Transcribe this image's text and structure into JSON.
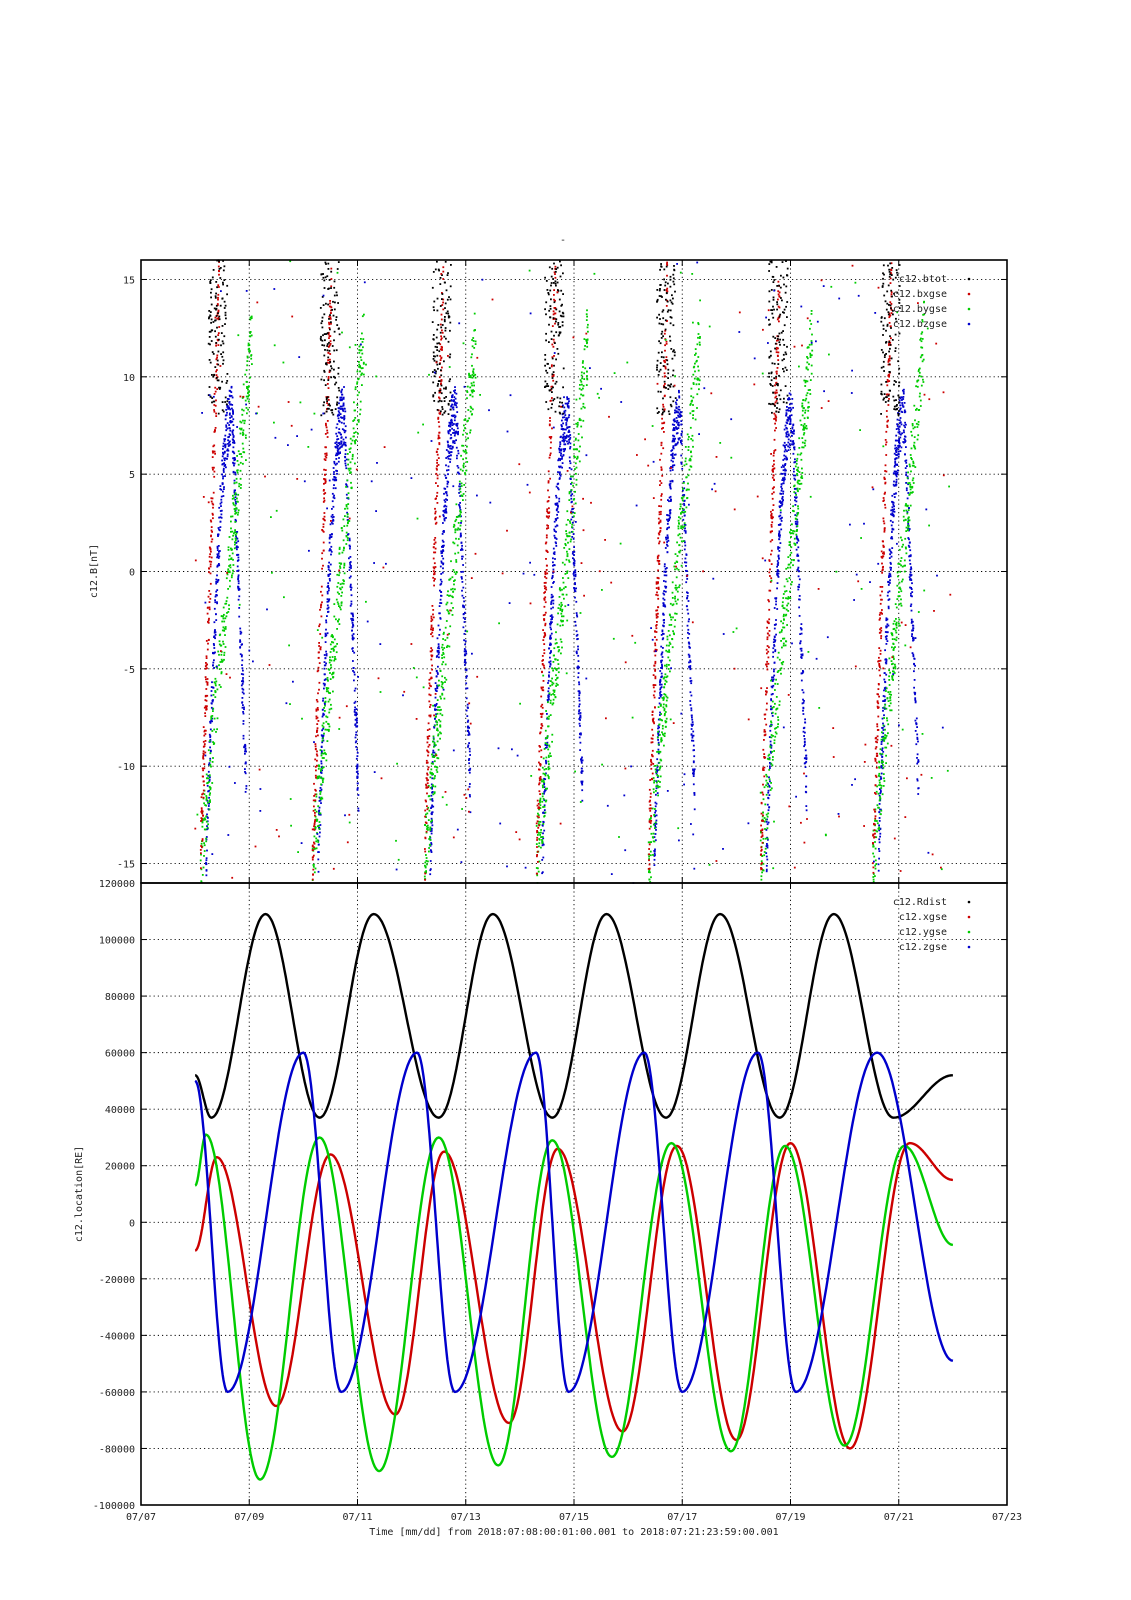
{
  "figure": {
    "title": "-",
    "x_label": "Time [mm/dd]  from 2018:07:08:00:01:00.001  to  2018:07:21:23:59:00.001"
  },
  "chart_data": [
    {
      "type": "scatter",
      "ylabel": "c12.B[nT]",
      "ylim": [
        -16,
        16
      ],
      "yticks": [
        -15,
        -10,
        -5,
        0,
        5,
        10,
        15
      ],
      "xlim": [
        "07/07",
        "07/23"
      ],
      "xticks": [
        "07/07",
        "07/09",
        "07/11",
        "07/13",
        "07/15",
        "07/17",
        "07/19",
        "07/21",
        "07/23"
      ],
      "grid": true,
      "legend_position": "top-right",
      "series": [
        {
          "name": "c12.btot",
          "color": "#000000"
        },
        {
          "name": "c12.bxgse",
          "color": "#cc0000"
        },
        {
          "name": "c12.bygse",
          "color": "#00cc00"
        },
        {
          "name": "c12.bzgse",
          "color": "#0000cc"
        }
      ]
    },
    {
      "type": "line",
      "ylabel": "c12.location[RE]",
      "ylim": [
        -100000,
        120000
      ],
      "yticks": [
        -100000,
        -80000,
        -60000,
        -40000,
        -20000,
        0,
        20000,
        40000,
        60000,
        80000,
        100000,
        120000
      ],
      "xlim": [
        "07/07",
        "07/23"
      ],
      "xticks": [
        "07/07",
        "07/09",
        "07/11",
        "07/13",
        "07/15",
        "07/17",
        "07/19",
        "07/21",
        "07/23"
      ],
      "grid": true,
      "legend_position": "top-right",
      "series": [
        {
          "name": "c12.Rdist",
          "color": "#000000",
          "points": [
            [
              "07/08",
              52000
            ],
            [
              "07/08.3",
              37000
            ],
            [
              "07/09.3",
              109000
            ],
            [
              "07/10.3",
              37000
            ],
            [
              "07/11.3",
              109000
            ],
            [
              "07/12.5",
              37000
            ],
            [
              "07/13.5",
              109000
            ],
            [
              "07/14.6",
              37000
            ],
            [
              "07/15.6",
              109000
            ],
            [
              "07/16.7",
              37000
            ],
            [
              "07/17.7",
              109000
            ],
            [
              "07/18.8",
              37000
            ],
            [
              "07/19.8",
              109000
            ],
            [
              "07/20.9",
              37000
            ],
            [
              "07/22",
              52000
            ]
          ]
        },
        {
          "name": "c12.xgse",
          "color": "#cc0000",
          "points": [
            [
              "07/08",
              -10000
            ],
            [
              "07/08.4",
              23000
            ],
            [
              "07/09.5",
              -65000
            ],
            [
              "07/10.5",
              24000
            ],
            [
              "07/11.7",
              -68000
            ],
            [
              "07/12.6",
              25000
            ],
            [
              "07/13.8",
              -71000
            ],
            [
              "07/14.7",
              26000
            ],
            [
              "07/15.9",
              -74000
            ],
            [
              "07/16.9",
              27000
            ],
            [
              "07/18",
              -77000
            ],
            [
              "07/19",
              28000
            ],
            [
              "07/20.1",
              -80000
            ],
            [
              "07/21.2",
              28000
            ],
            [
              "07/22",
              15000
            ]
          ]
        },
        {
          "name": "c12.ygse",
          "color": "#00cc00",
          "points": [
            [
              "07/08",
              13000
            ],
            [
              "07/08.2",
              31000
            ],
            [
              "07/09.2",
              -91000
            ],
            [
              "07/10.3",
              30000
            ],
            [
              "07/11.4",
              -88000
            ],
            [
              "07/12.5",
              30000
            ],
            [
              "07/13.6",
              -86000
            ],
            [
              "07/14.6",
              29000
            ],
            [
              "07/15.7",
              -83000
            ],
            [
              "07/16.8",
              28000
            ],
            [
              "07/17.9",
              -81000
            ],
            [
              "07/18.9",
              27000
            ],
            [
              "07/20",
              -79000
            ],
            [
              "07/21.1",
              27000
            ],
            [
              "07/22",
              -8000
            ]
          ]
        },
        {
          "name": "c12.zgse",
          "color": "#0000cc",
          "points": [
            [
              "07/08",
              50000
            ],
            [
              "07/08.6",
              -60000
            ],
            [
              "07/10",
              60000
            ],
            [
              "07/10.7",
              -60000
            ],
            [
              "07/12.1",
              60000
            ],
            [
              "07/12.8",
              -60000
            ],
            [
              "07/14.3",
              60000
            ],
            [
              "07/14.9",
              -60000
            ],
            [
              "07/16.3",
              60000
            ],
            [
              "07/17",
              -60000
            ],
            [
              "07/18.4",
              60000
            ],
            [
              "07/19.1",
              -60000
            ],
            [
              "07/20.6",
              60000
            ],
            [
              "07/22",
              -49000
            ]
          ]
        }
      ]
    }
  ]
}
